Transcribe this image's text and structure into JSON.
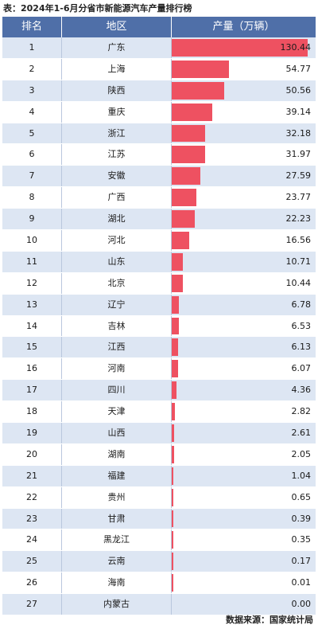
{
  "caption": "表：2024年1-6月分省市新能源汽车产量排行榜",
  "source": "数据来源：国家统计局",
  "chart_data": {
    "type": "table",
    "columns": [
      "排名",
      "地区",
      "产量（万辆）"
    ],
    "max_value": 130.44,
    "bar_color": "#ee5161",
    "header_color": "#4f6fa8",
    "stripe_color": "#dde6f3",
    "rows": [
      {
        "rank": "1",
        "region": "广东",
        "value": 130.44,
        "value_label": "130.44"
      },
      {
        "rank": "2",
        "region": "上海",
        "value": 54.77,
        "value_label": "54.77"
      },
      {
        "rank": "3",
        "region": "陕西",
        "value": 50.56,
        "value_label": "50.56"
      },
      {
        "rank": "4",
        "region": "重庆",
        "value": 39.14,
        "value_label": "39.14"
      },
      {
        "rank": "5",
        "region": "浙江",
        "value": 32.18,
        "value_label": "32.18"
      },
      {
        "rank": "6",
        "region": "江苏",
        "value": 31.97,
        "value_label": "31.97"
      },
      {
        "rank": "7",
        "region": "安徽",
        "value": 27.59,
        "value_label": "27.59"
      },
      {
        "rank": "8",
        "region": "广西",
        "value": 23.77,
        "value_label": "23.77"
      },
      {
        "rank": "9",
        "region": "湖北",
        "value": 22.23,
        "value_label": "22.23"
      },
      {
        "rank": "10",
        "region": "河北",
        "value": 16.56,
        "value_label": "16.56"
      },
      {
        "rank": "11",
        "region": "山东",
        "value": 10.71,
        "value_label": "10.71"
      },
      {
        "rank": "12",
        "region": "北京",
        "value": 10.44,
        "value_label": "10.44"
      },
      {
        "rank": "13",
        "region": "辽宁",
        "value": 6.78,
        "value_label": "6.78"
      },
      {
        "rank": "14",
        "region": "吉林",
        "value": 6.53,
        "value_label": "6.53"
      },
      {
        "rank": "15",
        "region": "江西",
        "value": 6.13,
        "value_label": "6.13"
      },
      {
        "rank": "16",
        "region": "河南",
        "value": 6.07,
        "value_label": "6.07"
      },
      {
        "rank": "17",
        "region": "四川",
        "value": 4.36,
        "value_label": "4.36"
      },
      {
        "rank": "18",
        "region": "天津",
        "value": 2.82,
        "value_label": "2.82"
      },
      {
        "rank": "19",
        "region": "山西",
        "value": 2.61,
        "value_label": "2.61"
      },
      {
        "rank": "20",
        "region": "湖南",
        "value": 2.05,
        "value_label": "2.05"
      },
      {
        "rank": "21",
        "region": "福建",
        "value": 1.04,
        "value_label": "1.04"
      },
      {
        "rank": "22",
        "region": "贵州",
        "value": 0.65,
        "value_label": "0.65"
      },
      {
        "rank": "23",
        "region": "甘肃",
        "value": 0.39,
        "value_label": "0.39"
      },
      {
        "rank": "24",
        "region": "黑龙江",
        "value": 0.35,
        "value_label": "0.35"
      },
      {
        "rank": "25",
        "region": "云南",
        "value": 0.17,
        "value_label": "0.17"
      },
      {
        "rank": "26",
        "region": "海南",
        "value": 0.01,
        "value_label": "0.01"
      },
      {
        "rank": "27",
        "region": "内蒙古",
        "value": 0.0,
        "value_label": "0.00"
      }
    ]
  }
}
